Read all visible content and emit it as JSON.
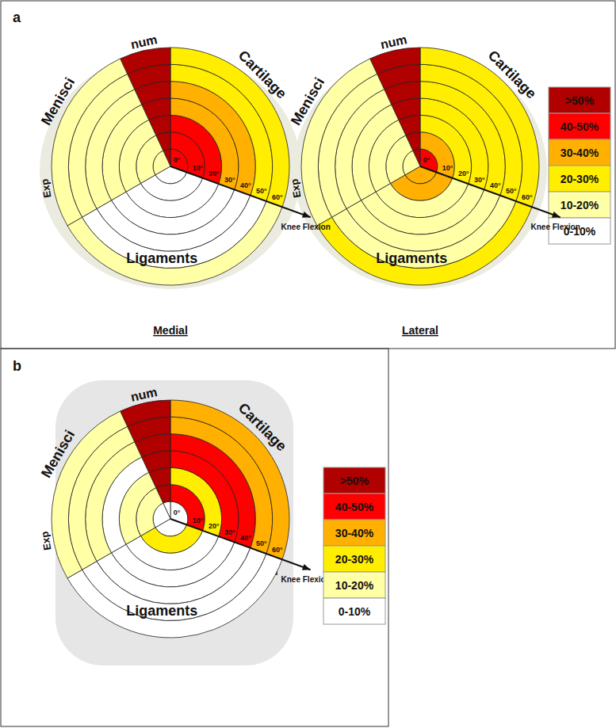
{
  "color_scale": [
    {
      "label": ">50%",
      "color": "#b00000"
    },
    {
      "label": "40-50%",
      "color": "#ff0000"
    },
    {
      "label": "30-40%",
      "color": "#ffb000"
    },
    {
      "label": "20-30%",
      "color": "#ffee00"
    },
    {
      "label": "10-20%",
      "color": "#ffffa6"
    },
    {
      "label": "0-10%",
      "color": "#ffffff"
    }
  ],
  "chart_data": [
    {
      "type": "polar_heatmap",
      "title": "a",
      "subtitle": "Medial",
      "axis_label": "Knee Flexion",
      "categories": [
        "0°",
        "10°",
        "20°",
        "30°",
        "40°",
        "50°",
        "60°"
      ],
      "series": [
        {
          "name": "Exp",
          "group": "Menisci",
          "values": [
            "10-20%",
            "10-20%",
            "10-20%",
            "10-20%",
            "10-20%",
            "10-20%",
            "10-20%"
          ]
        },
        {
          "name": "num",
          "group": "Menisci",
          "values": [
            ">50%",
            ">50%",
            ">50%",
            ">50%",
            ">50%",
            ">50%",
            ">50%"
          ]
        },
        {
          "name": "Cartilage",
          "values": [
            "40-50%",
            "40-50%",
            "40-50%",
            "30-40%",
            "30-40%",
            "20-30%",
            "20-30%"
          ]
        },
        {
          "name": "Ligaments",
          "values": [
            "0-10%",
            "0-10%",
            "0-10%",
            "0-10%",
            "0-10%",
            "0-10%",
            "10-20%"
          ]
        }
      ]
    },
    {
      "type": "polar_heatmap",
      "subtitle": "Lateral",
      "axis_label": "Knee Flexion",
      "categories": [
        "0°",
        "10°",
        "20°",
        "30°",
        "40°",
        "50°",
        "60°"
      ],
      "series": [
        {
          "name": "Exp",
          "group": "Menisci",
          "values": [
            "10-20%",
            "10-20%",
            "10-20%",
            "10-20%",
            "10-20%",
            "10-20%",
            "10-20%"
          ]
        },
        {
          "name": "num",
          "group": "Menisci",
          "values": [
            ">50%",
            ">50%",
            ">50%",
            ">50%",
            ">50%",
            ">50%",
            ">50%"
          ]
        },
        {
          "name": "Cartilage",
          "values": [
            "40-50%",
            "30-40%",
            "20-30%",
            "20-30%",
            "20-30%",
            "20-30%",
            "20-30%"
          ]
        },
        {
          "name": "Ligaments",
          "values": [
            "30-40%",
            "30-40%",
            "10-20%",
            "10-20%",
            "10-20%",
            "10-20%",
            "20-30%"
          ]
        }
      ]
    },
    {
      "type": "polar_heatmap",
      "title": "b",
      "axis_label": "Knee Flexion",
      "categories": [
        "0°",
        "10°",
        "20°",
        "30°",
        "40°",
        "50°",
        "60°"
      ],
      "series": [
        {
          "name": "Exp",
          "group": "Menisci",
          "values": [
            "0-10%",
            "10-20%",
            "10-20%",
            "0-10%",
            "10-20%",
            "10-20%",
            "10-20%"
          ]
        },
        {
          "name": "num",
          "group": "Menisci",
          "values": [
            "0-10%",
            ">50%",
            ">50%",
            ">50%",
            ">50%",
            ">50%",
            ">50%"
          ]
        },
        {
          "name": "Cartilage",
          "values": [
            "0-10%",
            "40-50%",
            "20-30%",
            "40-50%",
            "40-50%",
            "30-40%",
            "30-40%"
          ]
        },
        {
          "name": "Ligaments",
          "values": [
            "0-10%",
            "20-30%",
            "0-10%",
            "0-10%",
            "0-10%",
            "0-10%",
            "0-10%"
          ]
        }
      ]
    }
  ]
}
